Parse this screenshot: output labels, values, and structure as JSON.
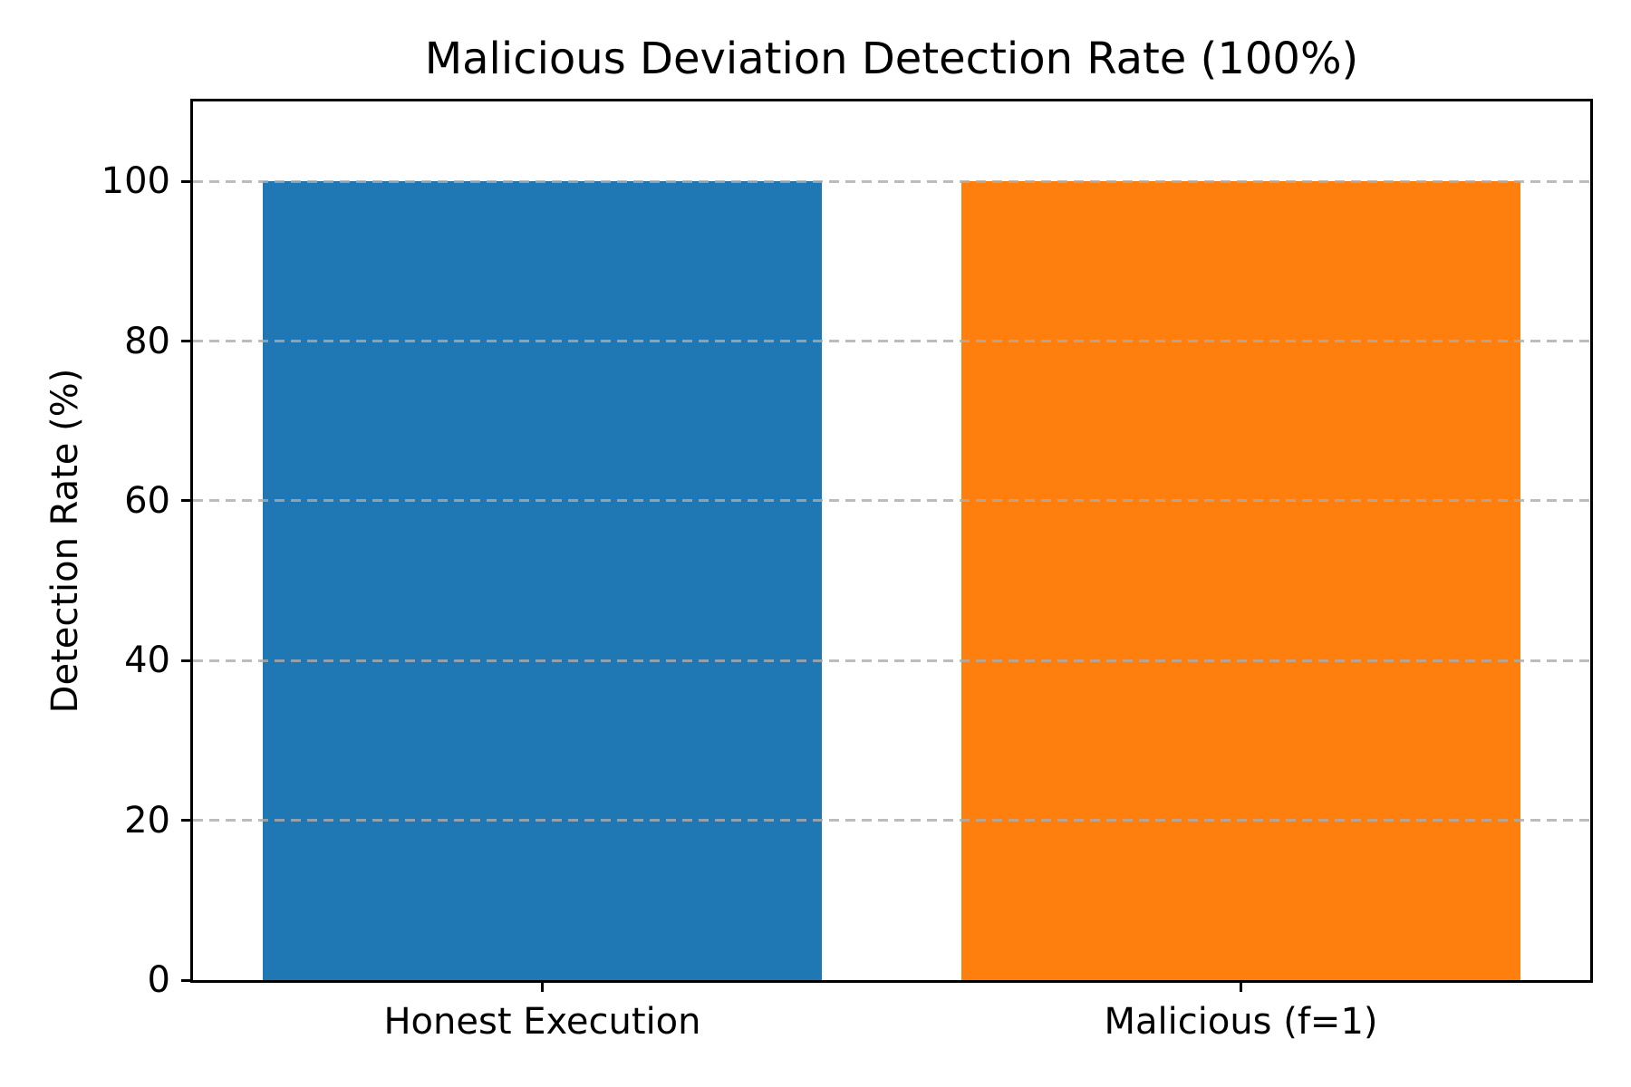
{
  "chart_data": {
    "type": "bar",
    "title": "Malicious Deviation Detection Rate (100%)",
    "ylabel": "Detection Rate (%)",
    "xlabel": "",
    "categories": [
      "Honest Execution",
      "Malicious (f=1)"
    ],
    "values": [
      100,
      100
    ],
    "bar_colors": [
      "#1f77b4",
      "#ff7f0e"
    ],
    "bar_width_fraction": 0.8,
    "ylim": [
      0,
      110
    ],
    "yticks": [
      0,
      20,
      40,
      60,
      80,
      100
    ],
    "grid": "horizontal-dashed",
    "grid_color": "#acacac",
    "legend": "none",
    "background_color": "#ffffff",
    "spine_color": "#000000"
  }
}
